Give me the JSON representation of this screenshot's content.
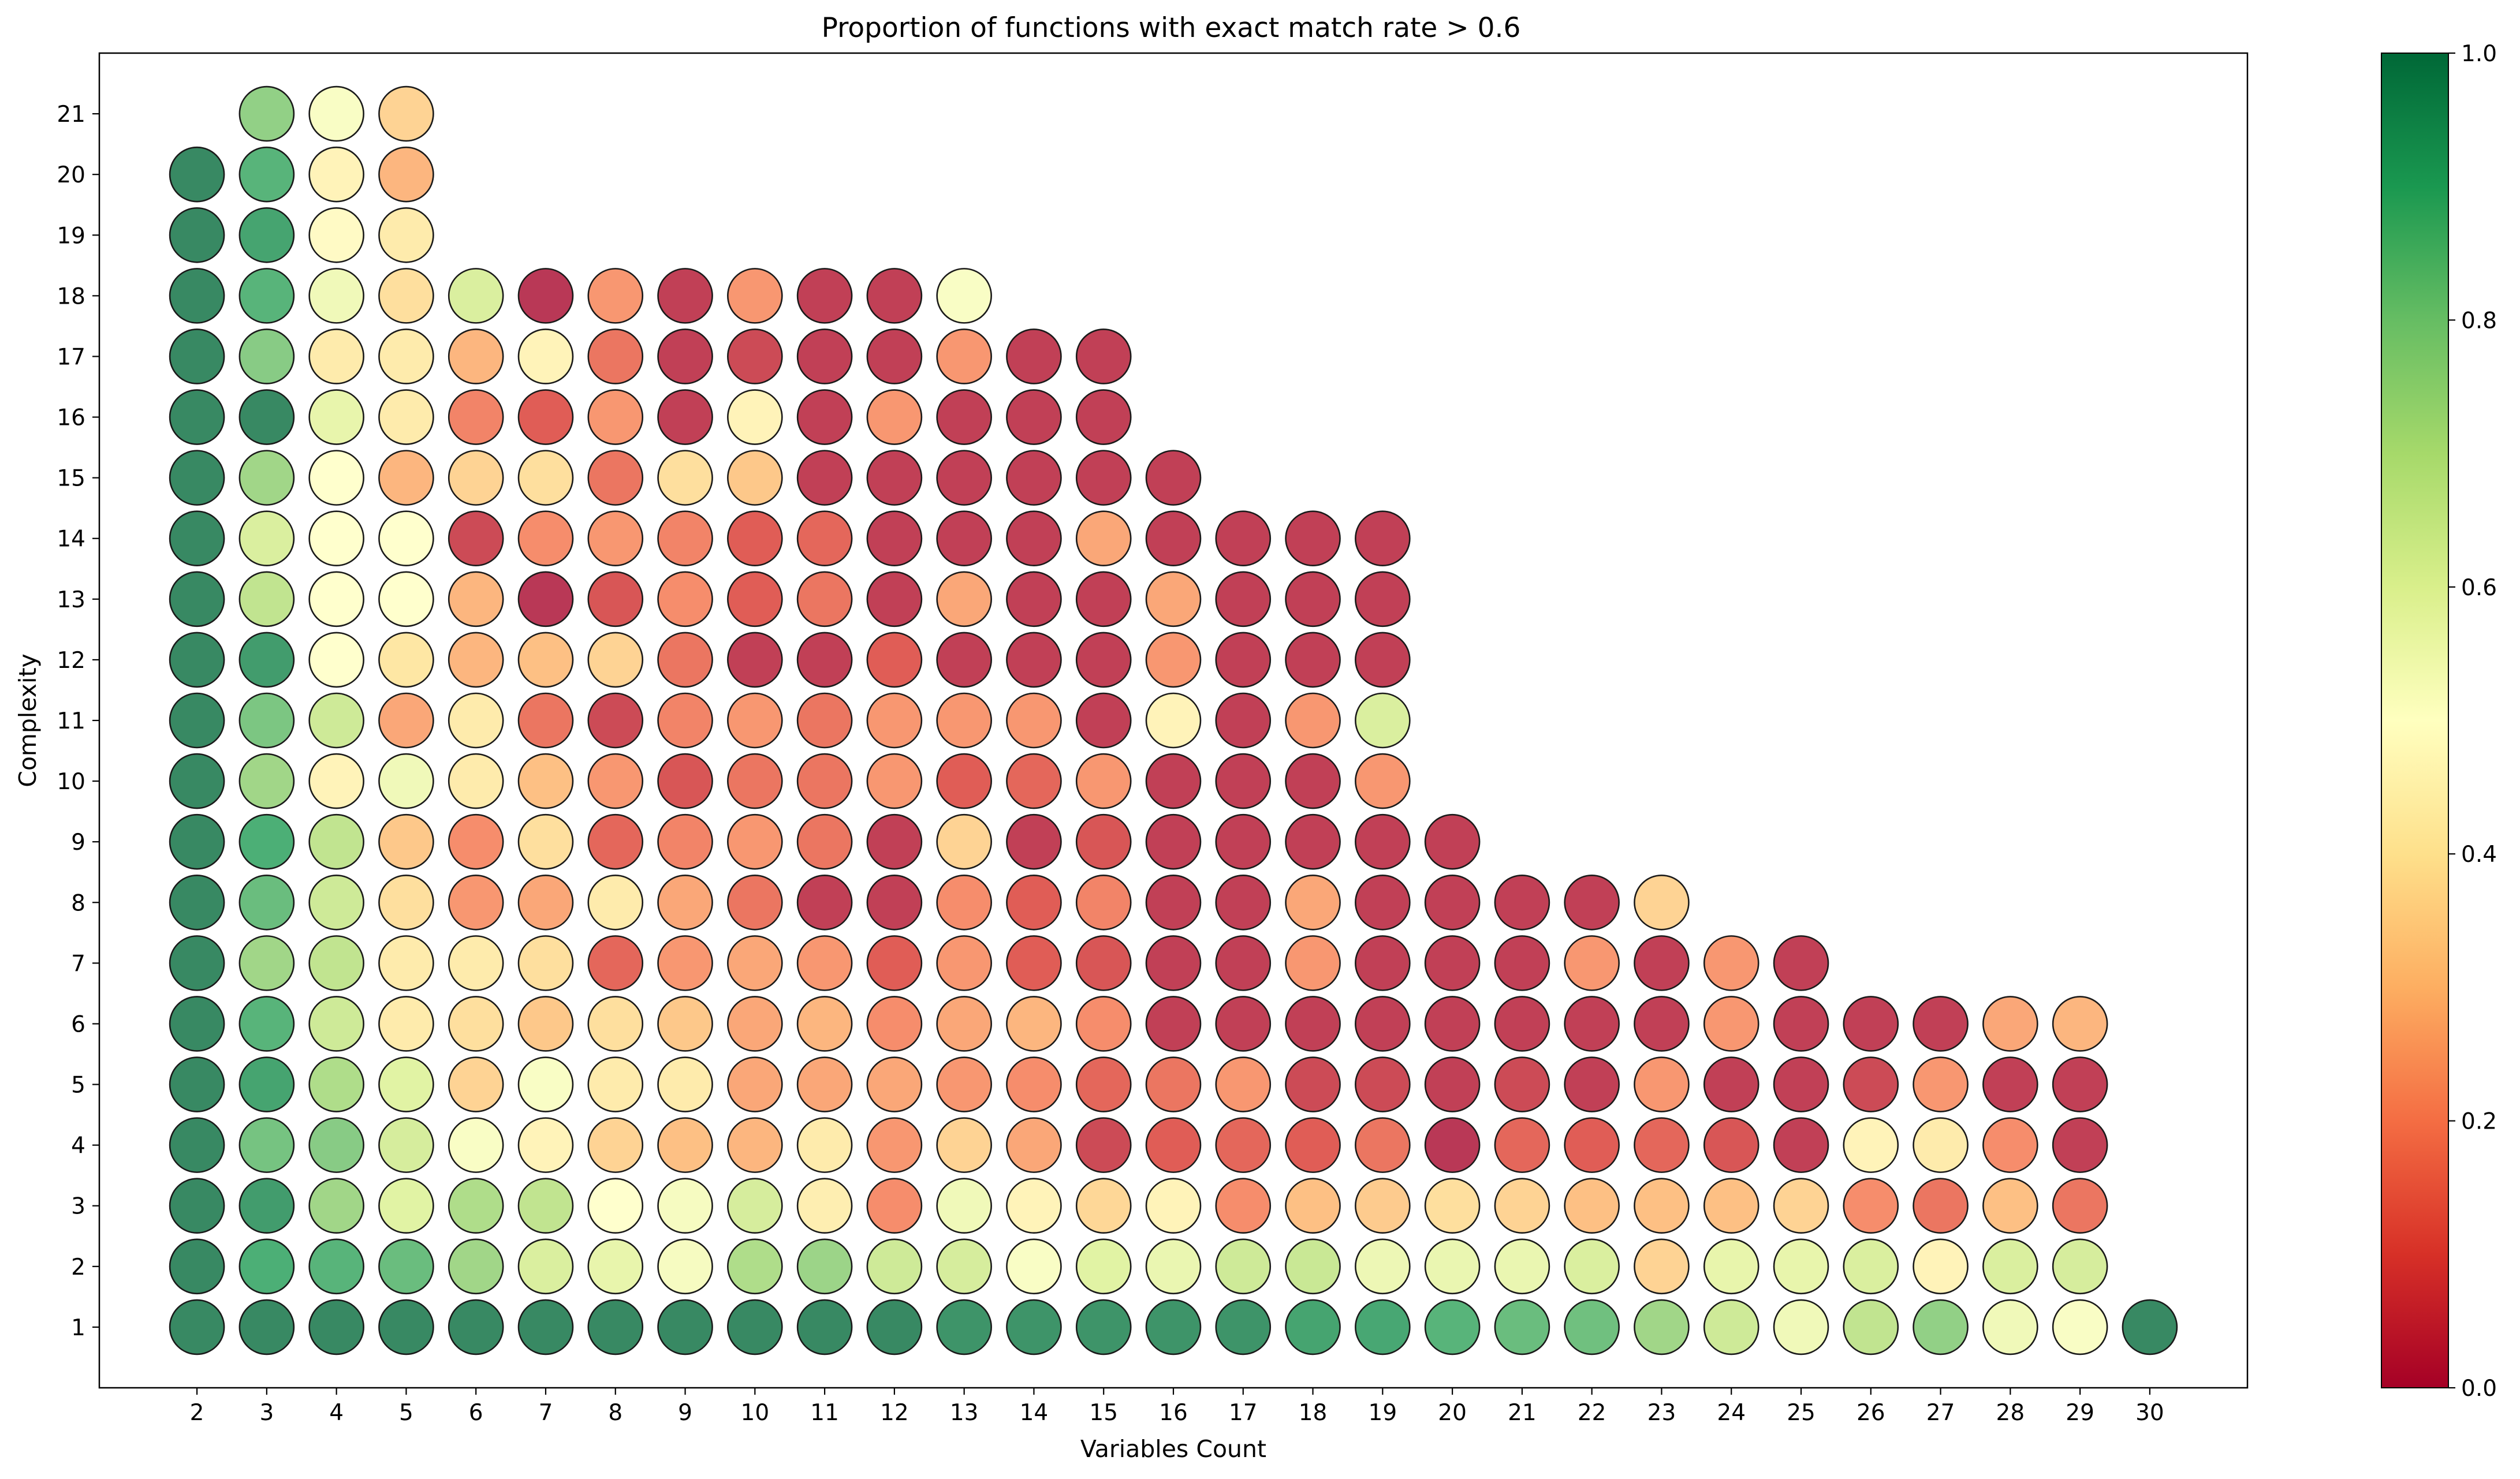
{
  "chart_data": {
    "type": "scatter",
    "title": "Proportion of functions with exact match rate > 0.6",
    "xlabel": "Variables Count",
    "ylabel": "Complexity",
    "x_ticks": [
      2,
      3,
      4,
      5,
      6,
      7,
      8,
      9,
      10,
      11,
      12,
      13,
      14,
      15,
      16,
      17,
      18,
      19,
      20,
      21,
      22,
      23,
      24,
      25,
      26,
      27,
      28,
      29,
      30
    ],
    "y_ticks": [
      1,
      2,
      3,
      4,
      5,
      6,
      7,
      8,
      9,
      10,
      11,
      12,
      13,
      14,
      15,
      16,
      17,
      18,
      19,
      20,
      21
    ],
    "xlim": [
      0.6,
      31.4
    ],
    "ylim": [
      0.0,
      22.0
    ],
    "colormap": "RdYlGn",
    "color_range": [
      0.0,
      1.0
    ],
    "colorbar_ticks": [
      "0.0",
      "0.2",
      "0.4",
      "0.6",
      "0.8",
      "1.0"
    ],
    "grid": false,
    "rows": [
      {
        "complexity": 1,
        "start_x": 2,
        "values": [
          1.0,
          1.0,
          1.0,
          1.0,
          1.0,
          1.0,
          1.0,
          1.0,
          1.0,
          1.0,
          1.0,
          0.97,
          0.97,
          0.97,
          0.97,
          0.97,
          0.93,
          0.92,
          0.88,
          0.85,
          0.84,
          0.75,
          0.65,
          0.55,
          0.68,
          0.78,
          0.55,
          0.52,
          1.0
        ]
      },
      {
        "complexity": 2,
        "start_x": 2,
        "values": [
          1.0,
          0.9,
          0.88,
          0.85,
          0.75,
          0.62,
          0.58,
          0.53,
          0.72,
          0.76,
          0.65,
          0.63,
          0.52,
          0.6,
          0.57,
          0.65,
          0.66,
          0.56,
          0.57,
          0.57,
          0.62,
          0.35,
          0.58,
          0.58,
          0.62,
          0.45,
          0.62,
          0.63
        ]
      },
      {
        "complexity": 3,
        "start_x": 2,
        "values": [
          1.0,
          0.95,
          0.75,
          0.6,
          0.72,
          0.68,
          0.5,
          0.53,
          0.63,
          0.43,
          0.2,
          0.55,
          0.45,
          0.36,
          0.45,
          0.2,
          0.3,
          0.33,
          0.38,
          0.35,
          0.3,
          0.3,
          0.3,
          0.35,
          0.2,
          0.15,
          0.3,
          0.15
        ]
      },
      {
        "complexity": 4,
        "start_x": 2,
        "values": [
          1.0,
          0.83,
          0.8,
          0.63,
          0.52,
          0.45,
          0.35,
          0.3,
          0.28,
          0.42,
          0.22,
          0.35,
          0.25,
          0.05,
          0.1,
          0.12,
          0.1,
          0.15,
          0.0,
          0.12,
          0.1,
          0.12,
          0.08,
          0.02,
          0.45,
          0.42,
          0.2,
          0.02
        ]
      },
      {
        "complexity": 5,
        "start_x": 2,
        "values": [
          1.0,
          0.93,
          0.72,
          0.6,
          0.35,
          0.52,
          0.42,
          0.42,
          0.25,
          0.25,
          0.25,
          0.22,
          0.2,
          0.12,
          0.15,
          0.22,
          0.05,
          0.05,
          0.02,
          0.05,
          0.02,
          0.22,
          0.02,
          0.02,
          0.05,
          0.22,
          0.02,
          0.02
        ]
      },
      {
        "complexity": 6,
        "start_x": 2,
        "values": [
          1.0,
          0.88,
          0.65,
          0.42,
          0.38,
          0.32,
          0.38,
          0.32,
          0.25,
          0.28,
          0.2,
          0.25,
          0.28,
          0.2,
          0.02,
          0.02,
          0.02,
          0.02,
          0.02,
          0.02,
          0.02,
          0.02,
          0.22,
          0.02,
          0.02,
          0.02,
          0.25,
          0.28
        ]
      },
      {
        "complexity": 7,
        "start_x": 2,
        "values": [
          1.0,
          0.75,
          0.68,
          0.42,
          0.42,
          0.38,
          0.12,
          0.22,
          0.25,
          0.22,
          0.1,
          0.22,
          0.1,
          0.08,
          0.02,
          0.02,
          0.22,
          0.02,
          0.02,
          0.02,
          0.22,
          0.02,
          0.22,
          0.02
        ]
      },
      {
        "complexity": 8,
        "start_x": 2,
        "values": [
          1.0,
          0.85,
          0.65,
          0.38,
          0.22,
          0.25,
          0.42,
          0.25,
          0.15,
          0.02,
          0.02,
          0.2,
          0.1,
          0.18,
          0.02,
          0.02,
          0.25,
          0.02,
          0.02,
          0.02,
          0.02,
          0.35
        ]
      },
      {
        "complexity": 9,
        "start_x": 2,
        "values": [
          1.0,
          0.9,
          0.68,
          0.32,
          0.2,
          0.38,
          0.12,
          0.18,
          0.22,
          0.15,
          0.02,
          0.35,
          0.02,
          0.08,
          0.02,
          0.02,
          0.02,
          0.02,
          0.02
        ]
      },
      {
        "complexity": 10,
        "start_x": 2,
        "values": [
          1.0,
          0.75,
          0.45,
          0.55,
          0.42,
          0.3,
          0.22,
          0.08,
          0.15,
          0.15,
          0.22,
          0.1,
          0.12,
          0.22,
          0.02,
          0.02,
          0.02,
          0.22
        ]
      },
      {
        "complexity": 11,
        "start_x": 2,
        "values": [
          1.0,
          0.82,
          0.65,
          0.25,
          0.42,
          0.15,
          0.05,
          0.18,
          0.22,
          0.15,
          0.22,
          0.22,
          0.22,
          0.02,
          0.45,
          0.02,
          0.22,
          0.62
        ]
      },
      {
        "complexity": 12,
        "start_x": 2,
        "values": [
          1.0,
          0.95,
          0.5,
          0.4,
          0.28,
          0.3,
          0.35,
          0.15,
          0.02,
          0.02,
          0.1,
          0.02,
          0.02,
          0.02,
          0.22,
          0.02,
          0.02,
          0.02
        ]
      },
      {
        "complexity": 13,
        "start_x": 2,
        "values": [
          1.0,
          0.68,
          0.5,
          0.5,
          0.28,
          0.0,
          0.08,
          0.2,
          0.1,
          0.15,
          0.02,
          0.25,
          0.02,
          0.02,
          0.25,
          0.02,
          0.02,
          0.02
        ]
      },
      {
        "complexity": 14,
        "start_x": 2,
        "values": [
          1.0,
          0.62,
          0.5,
          0.5,
          0.05,
          0.2,
          0.22,
          0.18,
          0.1,
          0.12,
          0.02,
          0.02,
          0.02,
          0.25,
          0.02,
          0.02,
          0.02,
          0.02
        ]
      },
      {
        "complexity": 15,
        "start_x": 2,
        "values": [
          1.0,
          0.75,
          0.5,
          0.28,
          0.35,
          0.38,
          0.15,
          0.38,
          0.32,
          0.02,
          0.02,
          0.02,
          0.02,
          0.02,
          0.02
        ]
      },
      {
        "complexity": 16,
        "start_x": 2,
        "values": [
          1.0,
          1.0,
          0.58,
          0.42,
          0.18,
          0.1,
          0.22,
          0.02,
          0.45,
          0.02,
          0.22,
          0.02,
          0.02,
          0.02
        ]
      },
      {
        "complexity": 17,
        "start_x": 2,
        "values": [
          1.0,
          0.8,
          0.42,
          0.42,
          0.28,
          0.45,
          0.15,
          0.02,
          0.05,
          0.02,
          0.02,
          0.22,
          0.02,
          0.02
        ]
      },
      {
        "complexity": 18,
        "start_x": 2,
        "values": [
          1.0,
          0.88,
          0.55,
          0.38,
          0.62,
          0.0,
          0.22,
          0.02,
          0.22,
          0.02,
          0.02,
          0.52
        ]
      },
      {
        "complexity": 19,
        "start_x": 2,
        "values": [
          1.0,
          0.93,
          0.48,
          0.42
        ]
      },
      {
        "complexity": 20,
        "start_x": 2,
        "values": [
          1.0,
          0.88,
          0.45,
          0.28
        ]
      },
      {
        "complexity": 21,
        "start_x": 3,
        "values": [
          0.78,
          0.52,
          0.35
        ]
      }
    ]
  }
}
